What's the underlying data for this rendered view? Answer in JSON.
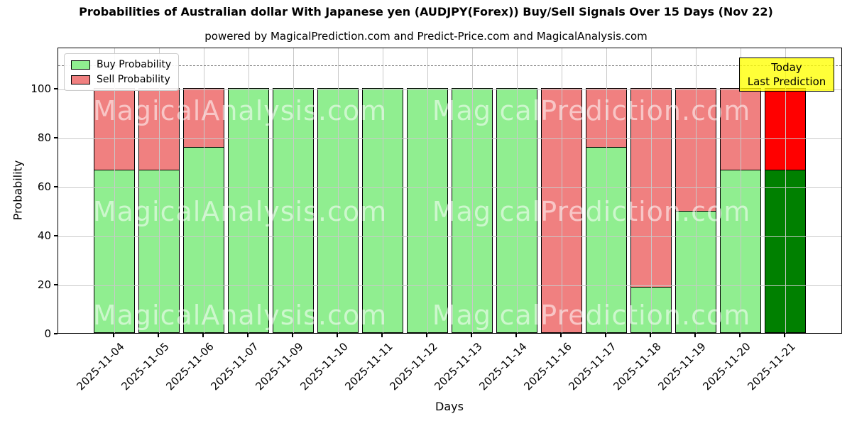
{
  "title": "Probabilities of Australian dollar With Japanese yen (AUDJPY(Forex)) Buy/Sell Signals Over 15 Days (Nov 22)",
  "subtitle": "powered by MagicalPrediction.com and Predict-Price.com and MagicalAnalysis.com",
  "annotation": {
    "line1": "Today",
    "line2": "Last Prediction",
    "bg_color": "#ffff00"
  },
  "legend": {
    "items": [
      {
        "label": "Buy Probability",
        "color": "#90ee90"
      },
      {
        "label": "Sell Probability",
        "color": "#f08080"
      }
    ]
  },
  "watermarks": {
    "left_text": "MagicalAnalysis.com",
    "right_text": "MagicalPrediction.com"
  },
  "axes": {
    "xlabel": "Days",
    "ylabel": "Probability"
  },
  "chart_data": {
    "type": "bar",
    "stacked": true,
    "title": "Probabilities of Australian dollar With Japanese yen (AUDJPY(Forex)) Buy/Sell Signals Over 15 Days (Nov 22)",
    "xlabel": "Days",
    "ylabel": "Probability",
    "ylim": [
      0,
      116.8
    ],
    "yticks": [
      0,
      20,
      40,
      60,
      80,
      100
    ],
    "grid": true,
    "legend_position": "upper left",
    "dashed_line_y": 110,
    "categories": [
      "2025-11-04",
      "2025-11-05",
      "2025-11-06",
      "2025-11-07",
      "2025-11-09",
      "2025-11-10",
      "2025-11-11",
      "2025-11-12",
      "2025-11-13",
      "2025-11-14",
      "2025-11-16",
      "2025-11-17",
      "2025-11-18",
      "2025-11-19",
      "2025-11-20",
      "2025-11-21"
    ],
    "series": [
      {
        "name": "Buy Probability",
        "color": "#90ee90",
        "values": [
          66.67,
          66.67,
          76.19,
          100,
          100,
          100,
          100,
          100,
          100,
          100,
          0,
          76.19,
          19.05,
          50,
          66.67,
          66.67
        ]
      },
      {
        "name": "Sell Probability",
        "color": "#f08080",
        "values": [
          33.33,
          33.33,
          23.81,
          0,
          0,
          0,
          0,
          0,
          0,
          0,
          100,
          23.81,
          80.95,
          50,
          33.33,
          33.33
        ]
      }
    ],
    "last_bar_colors": {
      "buy": "#008000",
      "sell": "#ff0000"
    }
  }
}
